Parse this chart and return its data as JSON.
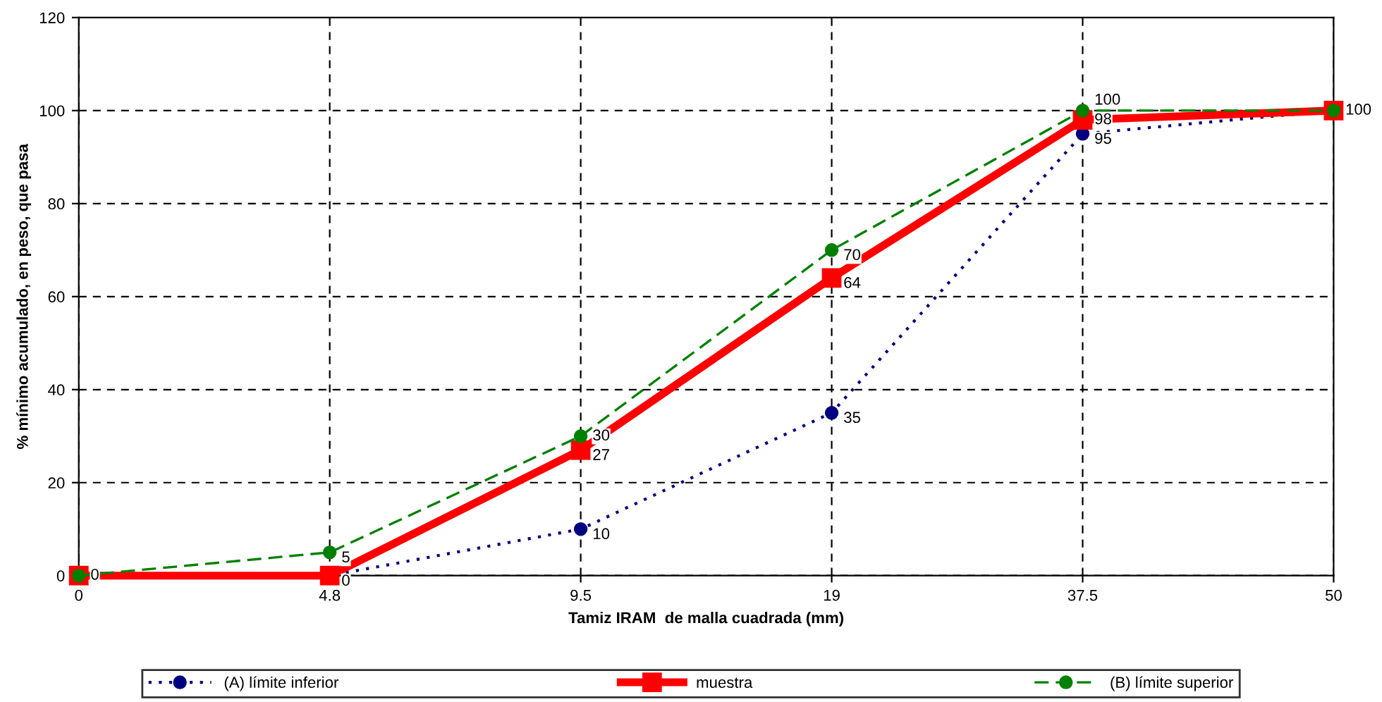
{
  "chart_data": {
    "type": "line",
    "xlabel": "Tamiz IRAM  de malla cuadrada (mm)",
    "ylabel": "% mínimo acumulado, en peso, que pasa",
    "categories": [
      "0",
      "4.8",
      "9.5",
      "19",
      "37.5",
      "50"
    ],
    "series": [
      {
        "name": "(A) límite inferior",
        "color": "#000080",
        "marker": "circle",
        "line_style": "dotted",
        "values": [
          0,
          0,
          10,
          35,
          95,
          100
        ],
        "value_labels": [
          "0",
          "0",
          "10",
          "35",
          "95",
          "100"
        ]
      },
      {
        "name": "muestra",
        "color": "#ff0000",
        "marker": "square",
        "line_style": "solid",
        "values": [
          0,
          0,
          27,
          64,
          98,
          100
        ],
        "value_labels": [
          null,
          null,
          "27",
          "64",
          "98",
          null
        ]
      },
      {
        "name": "(B) límite superior",
        "color": "#008000",
        "marker": "circle",
        "line_style": "dashed",
        "values": [
          0,
          5,
          30,
          70,
          100,
          100
        ],
        "value_labels": [
          null,
          "5",
          "30",
          "70",
          "100",
          null
        ]
      }
    ],
    "ylim": [
      0,
      120
    ],
    "yticks": [
      0,
      20,
      40,
      60,
      80,
      100,
      120
    ],
    "grid": true,
    "legend": "bottom"
  }
}
